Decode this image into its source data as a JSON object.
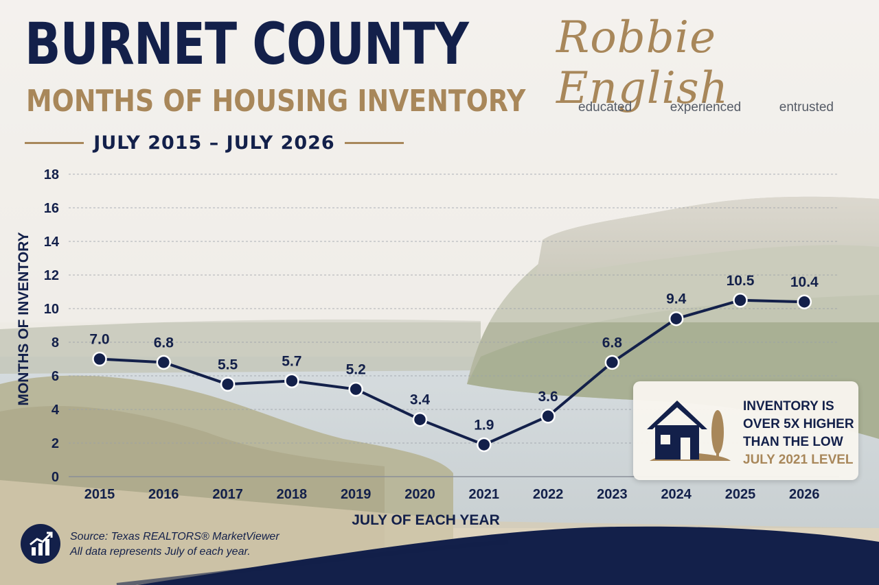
{
  "header": {
    "title": "BURNET COUNTY",
    "subtitle": "MONTHS OF HOUSING INVENTORY",
    "date_range": "JULY 2015 – JULY 2026"
  },
  "brand": {
    "name": "Robbie English",
    "tagline": [
      "educated",
      "experienced",
      "entrusted"
    ]
  },
  "callout": {
    "lines": [
      "INVENTORY IS",
      "OVER 5X HIGHER",
      "THAN THE LOW"
    ],
    "highlight": "JULY 2021 LEVEL",
    "icon": "house-and-tree-icon"
  },
  "source": {
    "line1": "Source: Texas REALTORS® MarketViewer",
    "line2": "All data represents July of each year.",
    "icon": "bar-chart-trend-icon"
  },
  "colors": {
    "navy": "#13204a",
    "gold": "#a8875a"
  },
  "chart_data": {
    "type": "line",
    "title": "MONTHS OF HOUSING INVENTORY",
    "xlabel": "JULY OF EACH YEAR",
    "ylabel": "MONTHS OF INVENTORY",
    "x": [
      "2015",
      "2016",
      "2017",
      "2018",
      "2019",
      "2020",
      "2021",
      "2022",
      "2023",
      "2024",
      "2025",
      "2026"
    ],
    "series": [
      {
        "values": [
          7.0,
          6.8,
          5.5,
          5.7,
          5.2,
          3.4,
          1.9,
          3.6,
          6.8,
          9.4,
          10.5,
          10.4
        ],
        "labels": [
          "7.0",
          "6.8",
          "5.5",
          "5.7",
          "5.2",
          "3.4",
          "1.9",
          "3.6",
          "6.8",
          "9.4",
          "10.5",
          "10.4"
        ]
      }
    ],
    "ylim": [
      0,
      18
    ],
    "yticks": [
      0,
      2,
      4,
      6,
      8,
      10,
      12,
      14,
      16,
      18
    ],
    "grid": true,
    "legend": "none"
  }
}
